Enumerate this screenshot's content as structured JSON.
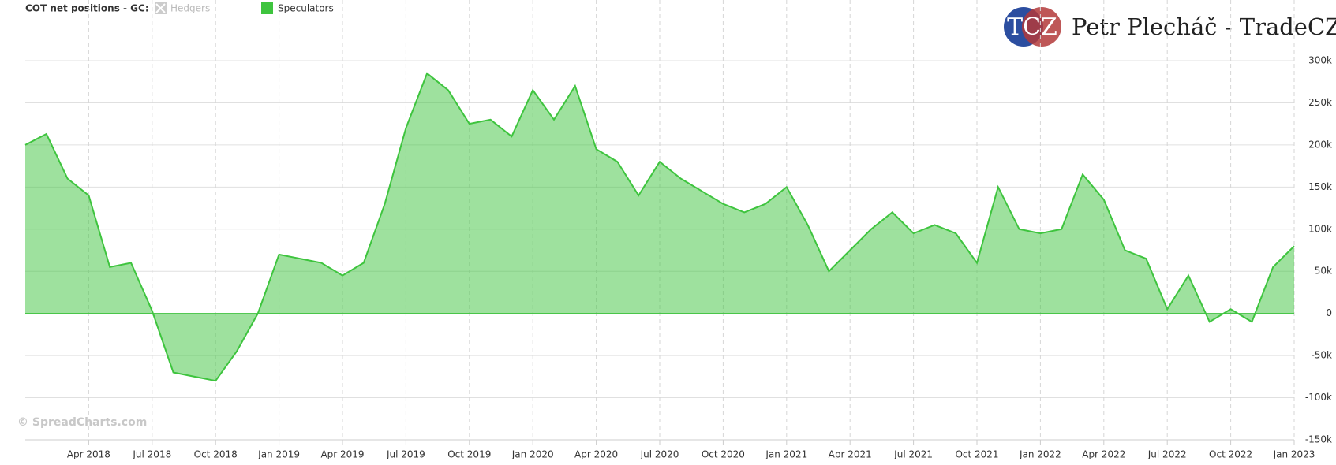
{
  "chart_data": {
    "type": "area",
    "title": "COT net positions - GC:",
    "inactive_legend": "Hedgers",
    "watermark": "© SpreadCharts.com",
    "logo_text": "TCZ",
    "brand": "Petr Plecháč - TradeCZ",
    "x": [
      "2018-01",
      "2018-02",
      "2018-03",
      "2018-04",
      "2018-05",
      "2018-06",
      "2018-07",
      "2018-08",
      "2018-09",
      "2018-10",
      "2018-11",
      "2018-12",
      "2019-01",
      "2019-02",
      "2019-03",
      "2019-04",
      "2019-05",
      "2019-06",
      "2019-07",
      "2019-08",
      "2019-09",
      "2019-10",
      "2019-11",
      "2019-12",
      "2020-01",
      "2020-02",
      "2020-03",
      "2020-04",
      "2020-05",
      "2020-06",
      "2020-07",
      "2020-08",
      "2020-09",
      "2020-10",
      "2020-11",
      "2020-12",
      "2021-01",
      "2021-02",
      "2021-03",
      "2021-04",
      "2021-05",
      "2021-06",
      "2021-07",
      "2021-08",
      "2021-09",
      "2021-10",
      "2021-11",
      "2021-12",
      "2022-01",
      "2022-02",
      "2022-03",
      "2022-04",
      "2022-05",
      "2022-06",
      "2022-07",
      "2022-08",
      "2022-09",
      "2022-10",
      "2022-11",
      "2022-12",
      "2023-01"
    ],
    "series": [
      {
        "name": "Speculators",
        "color": "#3ec43e",
        "values": [
          200000,
          213000,
          160000,
          140000,
          55000,
          60000,
          3000,
          -70000,
          -75000,
          -80000,
          -45000,
          0,
          70000,
          65000,
          60000,
          45000,
          60000,
          130000,
          220000,
          285000,
          265000,
          225000,
          230000,
          210000,
          265000,
          230000,
          270000,
          195000,
          180000,
          140000,
          180000,
          160000,
          145000,
          130000,
          120000,
          130000,
          150000,
          105000,
          50000,
          75000,
          100000,
          120000,
          95000,
          105000,
          95000,
          60000,
          150000,
          100000,
          95000,
          100000,
          165000,
          135000,
          75000,
          65000,
          5000,
          45000,
          -10000,
          5000,
          -10000,
          55000,
          80000
        ]
      }
    ],
    "xlim": [
      "2018-01",
      "2023-01"
    ],
    "xticks": [
      {
        "value": "2018-04",
        "label": "Apr 2018"
      },
      {
        "value": "2018-07",
        "label": "Jul 2018"
      },
      {
        "value": "2018-10",
        "label": "Oct 2018"
      },
      {
        "value": "2019-01",
        "label": "Jan 2019"
      },
      {
        "value": "2019-04",
        "label": "Apr 2019"
      },
      {
        "value": "2019-07",
        "label": "Jul 2019"
      },
      {
        "value": "2019-10",
        "label": "Oct 2019"
      },
      {
        "value": "2020-01",
        "label": "Jan 2020"
      },
      {
        "value": "2020-04",
        "label": "Apr 2020"
      },
      {
        "value": "2020-07",
        "label": "Jul 2020"
      },
      {
        "value": "2020-10",
        "label": "Oct 2020"
      },
      {
        "value": "2021-01",
        "label": "Jan 2021"
      },
      {
        "value": "2021-04",
        "label": "Apr 2021"
      },
      {
        "value": "2021-07",
        "label": "Jul 2021"
      },
      {
        "value": "2021-10",
        "label": "Oct 2021"
      },
      {
        "value": "2022-01",
        "label": "Jan 2022"
      },
      {
        "value": "2022-04",
        "label": "Apr 2022"
      },
      {
        "value": "2022-07",
        "label": "Jul 2022"
      },
      {
        "value": "2022-10",
        "label": "Oct 2022"
      },
      {
        "value": "2023-01",
        "label": "Jan 2023"
      }
    ],
    "ylim": [
      -150000,
      300000
    ],
    "yticks": [
      {
        "value": -150000,
        "label": "-150k"
      },
      {
        "value": -100000,
        "label": "-100k"
      },
      {
        "value": -50000,
        "label": "-50k"
      },
      0,
      {
        "value": 50000,
        "label": "50k"
      },
      {
        "value": 100000,
        "label": "100k"
      },
      {
        "value": 150000,
        "label": "150k"
      },
      {
        "value": 200000,
        "label": "200k"
      },
      {
        "value": 250000,
        "label": "250k"
      },
      {
        "value": 300000,
        "label": "300k"
      }
    ],
    "grid": true
  }
}
